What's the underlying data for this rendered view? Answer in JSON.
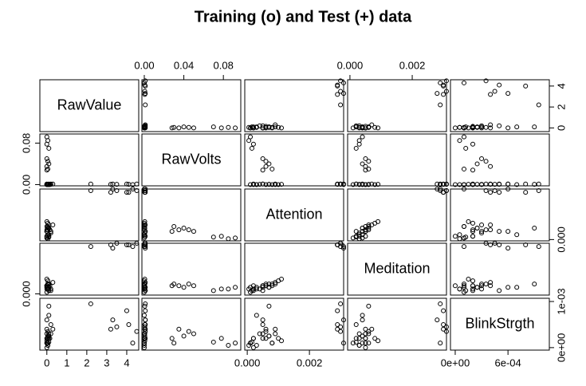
{
  "chart_data": {
    "type": "scatter_matrix",
    "title": "Training (o) and Test (+) data",
    "variables": [
      {
        "name": "RawValue",
        "lim": [
          -0.35,
          4.6
        ],
        "xticks": [
          0,
          1,
          2,
          3,
          4
        ],
        "yticks": [
          0,
          2,
          4
        ],
        "values": [
          0,
          0.05,
          0,
          0.1,
          0,
          0.05,
          0.1,
          0,
          0.05,
          0,
          2.2,
          3.2,
          3.3,
          3.5,
          4.0,
          4.3,
          4.5,
          4.1,
          0,
          0.1,
          0.05,
          0.2,
          0,
          0.15,
          0.1,
          0,
          0.3,
          0.05,
          0,
          0.1,
          0.2,
          0,
          0.05,
          0.1
        ]
      },
      {
        "name": "RawVolts",
        "lim": [
          -0.0024,
          0.0976
        ],
        "xticks": [
          {
            "value": 0,
            "label": "0.00"
          },
          {
            "value": 0.04,
            "label": "0.04"
          },
          {
            "value": 0.08,
            "label": "0.08"
          }
        ],
        "yticks": [
          {
            "value": 0,
            "label": "0.00"
          },
          {
            "value": 0.08,
            "label": "0.08"
          }
        ],
        "values": [
          0.092,
          0.085,
          0.078,
          0.07,
          0.05,
          0.045,
          0.04,
          0.035,
          0.03,
          0.028,
          0.001,
          0.0005,
          0.001,
          0.0005,
          0.001,
          0,
          0.001,
          0.0005,
          0,
          0.001,
          0,
          0.0005,
          0.001,
          0,
          0.0005,
          0,
          0.001,
          0,
          0.0005,
          0,
          0.001,
          0,
          0.0005,
          0
        ]
      },
      {
        "name": "Attention",
        "lim": [
          -8e-05,
          0.0031
        ],
        "xticks": [
          {
            "value": 0,
            "label": "0.000"
          },
          {
            "value": 0.002,
            "label": "0.002"
          }
        ],
        "yticks": [
          {
            "value": 0,
            "label": "0.000"
          }
        ],
        "values": [
          0.0001,
          5e-05,
          0.0002,
          0.00015,
          0.0005,
          0.0006,
          0.0007,
          0.0006,
          0.0008,
          0.0005,
          0.003,
          0.0029,
          0.0031,
          0.003,
          0.0029,
          0.0031,
          0.003,
          0.0029,
          0.0001,
          0.0002,
          0.0003,
          0.0004,
          0.0005,
          0.0006,
          0.0007,
          0.0008,
          0.0009,
          0.001,
          0.0011,
          0.0003,
          0.0005,
          0.0002,
          0.0007,
          0.0009
        ]
      },
      {
        "name": "Meditation",
        "lim": [
          -7.5e-05,
          0.0031
        ],
        "xticks": [
          {
            "value": 0,
            "label": "0.000"
          },
          {
            "value": 0.002,
            "label": "0.002"
          }
        ],
        "yticks": [
          {
            "value": 0,
            "label": "0.000"
          }
        ],
        "values": [
          0.0004,
          0.0003,
          0.0003,
          0.0002,
          0.0005,
          0.0006,
          0.0004,
          0.0005,
          0.0006,
          0.0005,
          0.0029,
          0.003,
          0.0028,
          0.0031,
          0.003,
          0.0029,
          0.0031,
          0.003,
          0.0001,
          0.0002,
          0.0003,
          0.0003,
          0.0004,
          0.0005,
          0.0006,
          0.0005,
          0.0007,
          0.0008,
          0.0009,
          0.0004,
          0.0002,
          0.0005,
          0.0004,
          0.0006
        ]
      },
      {
        "name": "BlinkStrgth",
        "lim": [
          -5.4e-05,
          0.00107
        ],
        "xticks": [
          {
            "value": 0,
            "label": "0e+00"
          },
          {
            "value": 0.0006,
            "label": "6e-04"
          }
        ],
        "yticks": [
          {
            "value": 0,
            "label": "0e+00"
          },
          {
            "value": 0.001,
            "label": "1e-03"
          }
        ],
        "values": [
          0.0001,
          5e-05,
          0.0002,
          0.00012,
          0.0003,
          0.00035,
          0.00025,
          0.0004,
          0.0001,
          0.0002,
          0.00095,
          0.0004,
          0.0006,
          0.00045,
          0.0008,
          0.0001,
          0.00035,
          0.0005,
          0.0001,
          0.0002,
          5e-05,
          0.0003,
          0.0006,
          0.0002,
          0.0009,
          0.0001,
          0.0004,
          0.0002,
          0.00015,
          0.0007,
          0.0005,
          0,
          0.00025,
          0.0003
        ]
      }
    ]
  }
}
